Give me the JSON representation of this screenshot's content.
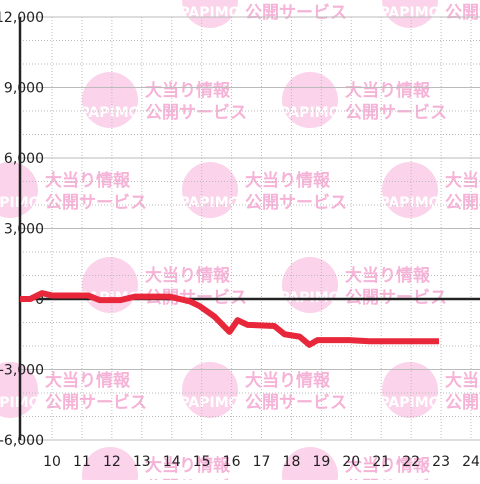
{
  "chart_data": {
    "type": "line",
    "watermark": {
      "logo": "PAPIMO",
      "line1": "大当り情報",
      "line2": "公開サービス"
    },
    "series": [
      {
        "color": "#e8273a",
        "x": [
          8.93,
          9.27,
          9.67,
          10,
          11.2,
          11.6,
          12.27,
          12.77,
          13.93,
          14.6,
          14.93,
          15.43,
          15.93,
          16.2,
          16.53,
          17.43,
          17.77,
          18.27,
          18.6,
          18.87,
          19.93,
          20.6,
          22.93
        ],
        "values": [
          0,
          0,
          250,
          150,
          150,
          -50,
          -50,
          100,
          100,
          -100,
          -300,
          -750,
          -1400,
          -900,
          -1100,
          -1150,
          -1500,
          -1600,
          -1950,
          -1750,
          -1750,
          -1800,
          -1800
        ]
      }
    ],
    "xlim": [
      8.93,
      24.3
    ],
    "xticks": [
      10,
      11,
      12,
      13,
      14,
      15,
      16,
      17,
      18,
      19,
      20,
      21,
      22,
      23,
      24
    ],
    "ylim": [
      -6000,
      12000
    ],
    "yticks": [
      {
        "value": -6000,
        "label": "-6,000"
      },
      {
        "value": -3000,
        "label": "-3,000"
      },
      0,
      {
        "value": 3000,
        "label": "3,000"
      },
      {
        "value": 6000,
        "label": "6,000"
      },
      {
        "value": 9000,
        "label": "9,000"
      },
      {
        "value": 12000,
        "label": "12,000"
      }
    ],
    "minor_yticks": [
      -5000,
      -4000,
      -2000,
      -1000,
      1000,
      2000,
      4000,
      5000,
      7000,
      8000,
      10000,
      11000
    ],
    "grid": true
  }
}
